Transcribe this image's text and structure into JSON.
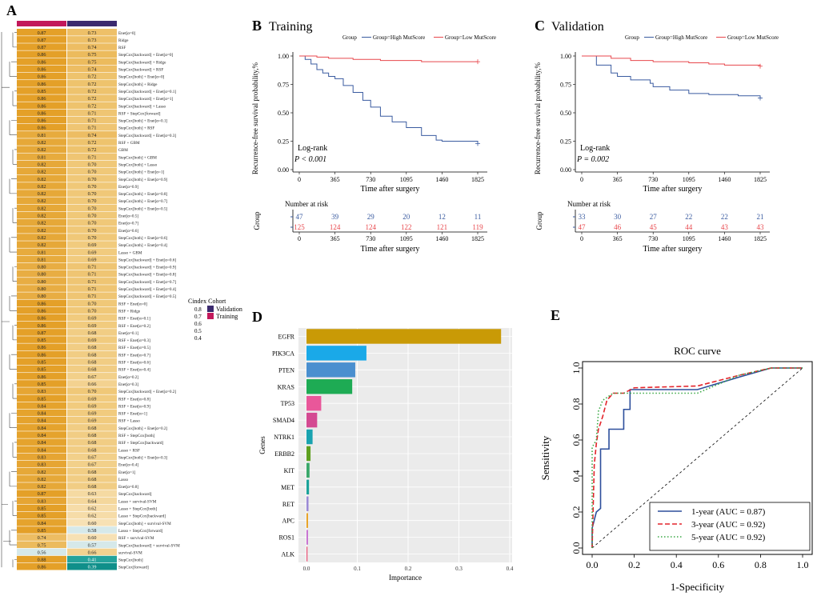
{
  "panels": {
    "A": "A",
    "B": "B",
    "C": "C",
    "D": "D",
    "E": "E"
  },
  "heatmap": {
    "legend_title": "Cindex Cohort",
    "legend_ticks": [
      "0.8",
      "0.7",
      "0.6",
      "0.5",
      "0.4"
    ],
    "legend_cohorts": [
      "Validation",
      "Training"
    ],
    "cohort_colors": {
      "Training": "#c2185b",
      "Validation": "#3b2a6e"
    },
    "rows": [
      {
        "model": "Enet[α=0]",
        "train": "0.87",
        "val": "0.73"
      },
      {
        "model": "Ridge",
        "train": "0.87",
        "val": "0.73"
      },
      {
        "model": "RSF",
        "train": "0.87",
        "val": "0.74"
      },
      {
        "model": "StepCox[backward] + Enet[α=0]",
        "train": "0.86",
        "val": "0.75"
      },
      {
        "model": "StepCox[backward] + Ridge",
        "train": "0.86",
        "val": "0.75"
      },
      {
        "model": "StepCox[backward] + RSF",
        "train": "0.86",
        "val": "0.74"
      },
      {
        "model": "StepCox[both] + Enet[α=0]",
        "train": "0.86",
        "val": "0.72"
      },
      {
        "model": "StepCox[both] + Ridge",
        "train": "0.86",
        "val": "0.72"
      },
      {
        "model": "StepCox[backward] + Enet[α=0.1]",
        "train": "0.85",
        "val": "0.72"
      },
      {
        "model": "StepCox[backward] + Enet[α=1]",
        "train": "0.86",
        "val": "0.72"
      },
      {
        "model": "StepCox[backward] + Lasso",
        "train": "0.86",
        "val": "0.72"
      },
      {
        "model": "RSF + StepCox[forward]",
        "train": "0.86",
        "val": "0.71"
      },
      {
        "model": "StepCox[both] + Enet[α=0.1]",
        "train": "0.86",
        "val": "0.71"
      },
      {
        "model": "StepCox[both] + RSF",
        "train": "0.86",
        "val": "0.71"
      },
      {
        "model": "StepCox[backward] + Enet[α=0.3]",
        "train": "0.81",
        "val": "0.74"
      },
      {
        "model": "RSF + GBM",
        "train": "0.82",
        "val": "0.72"
      },
      {
        "model": "GBM",
        "train": "0.82",
        "val": "0.72"
      },
      {
        "model": "StepCox[both] + GBM",
        "train": "0.81",
        "val": "0.71"
      },
      {
        "model": "StepCox[both] + Lasso",
        "train": "0.82",
        "val": "0.70"
      },
      {
        "model": "StepCox[both] + Enet[α=1]",
        "train": "0.82",
        "val": "0.70"
      },
      {
        "model": "StepCox[both] + Enet[α=0.9]",
        "train": "0.82",
        "val": "0.70"
      },
      {
        "model": "Enet[α=0.9]",
        "train": "0.82",
        "val": "0.70"
      },
      {
        "model": "StepCox[both] + Enet[α=0.8]",
        "train": "0.82",
        "val": "0.70"
      },
      {
        "model": "StepCox[both] + Enet[α=0.7]",
        "train": "0.82",
        "val": "0.70"
      },
      {
        "model": "StepCox[both] + Enet[α=0.5]",
        "train": "0.82",
        "val": "0.70"
      },
      {
        "model": "Enet[α=0.5]",
        "train": "0.82",
        "val": "0.70"
      },
      {
        "model": "Enet[α=0.7]",
        "train": "0.82",
        "val": "0.70"
      },
      {
        "model": "Enet[α=0.6]",
        "train": "0.82",
        "val": "0.70"
      },
      {
        "model": "StepCox[both] + Enet[α=0.6]",
        "train": "0.82",
        "val": "0.70"
      },
      {
        "model": "StepCox[both] + Enet[α=0.4]",
        "train": "0.82",
        "val": "0.69"
      },
      {
        "model": "Lasso + GBM",
        "train": "0.81",
        "val": "0.69"
      },
      {
        "model": "StepCox[backward] + Enet[α=0.6]",
        "train": "0.81",
        "val": "0.69"
      },
      {
        "model": "StepCox[backward] + Enet[α=0.9]",
        "train": "0.80",
        "val": "0.71"
      },
      {
        "model": "StepCox[backward] + Enet[α=0.8]",
        "train": "0.80",
        "val": "0.71"
      },
      {
        "model": "StepCox[backward] + Enet[α=0.7]",
        "train": "0.80",
        "val": "0.71"
      },
      {
        "model": "StepCox[backward] + Enet[α=0.4]",
        "train": "0.80",
        "val": "0.71"
      },
      {
        "model": "StepCox[backward] + Enet[α=0.5]",
        "train": "0.80",
        "val": "0.71"
      },
      {
        "model": "RSF + Enet[α=0]",
        "train": "0.86",
        "val": "0.70"
      },
      {
        "model": "RSF + Ridge",
        "train": "0.86",
        "val": "0.70"
      },
      {
        "model": "RSF + Enet[α=0.1]",
        "train": "0.86",
        "val": "0.69"
      },
      {
        "model": "RSF + Enet[α=0.2]",
        "train": "0.86",
        "val": "0.69"
      },
      {
        "model": "Enet[α=0.1]",
        "train": "0.87",
        "val": "0.68"
      },
      {
        "model": "RSF + Enet[α=0.3]",
        "train": "0.85",
        "val": "0.69"
      },
      {
        "model": "RSF + Enet[α=0.5]",
        "train": "0.86",
        "val": "0.68"
      },
      {
        "model": "RSF + Enet[α=0.7]",
        "train": "0.86",
        "val": "0.68"
      },
      {
        "model": "RSF + Enet[α=0.6]",
        "train": "0.85",
        "val": "0.68"
      },
      {
        "model": "RSF + Enet[α=0.4]",
        "train": "0.85",
        "val": "0.68"
      },
      {
        "model": "Enet[α=0.2]",
        "train": "0.86",
        "val": "0.67"
      },
      {
        "model": "Enet[α=0.3]",
        "train": "0.85",
        "val": "0.66"
      },
      {
        "model": "StepCox[backward] + Enet[α=0.2]",
        "train": "0.83",
        "val": "0.70"
      },
      {
        "model": "RSF + Enet[α=0.8]",
        "train": "0.85",
        "val": "0.69"
      },
      {
        "model": "RSF + Enet[α=0.9]",
        "train": "0.84",
        "val": "0.69"
      },
      {
        "model": "RSF + Enet[α=1]",
        "train": "0.84",
        "val": "0.69"
      },
      {
        "model": "RSF + Lasso",
        "train": "0.84",
        "val": "0.69"
      },
      {
        "model": "StepCox[both] + Enet[α=0.2]",
        "train": "0.84",
        "val": "0.68"
      },
      {
        "model": "RSF + StepCox[both]",
        "train": "0.84",
        "val": "0.68"
      },
      {
        "model": "RSF + StepCox[backward]",
        "train": "0.84",
        "val": "0.68"
      },
      {
        "model": "Lasso + RSF",
        "train": "0.84",
        "val": "0.68"
      },
      {
        "model": "StepCox[both] + Enet[α=0.3]",
        "train": "0.83",
        "val": "0.67"
      },
      {
        "model": "Enet[α=0.4]",
        "train": "0.83",
        "val": "0.67"
      },
      {
        "model": "Enet[α=1]",
        "train": "0.82",
        "val": "0.68"
      },
      {
        "model": "Lasso",
        "train": "0.82",
        "val": "0.68"
      },
      {
        "model": "Enet[α=0.8]",
        "train": "0.82",
        "val": "0.68"
      },
      {
        "model": "StepCox[backward]",
        "train": "0.87",
        "val": "0.63"
      },
      {
        "model": "Lasso + survival-SVM",
        "train": "0.83",
        "val": "0.64"
      },
      {
        "model": "Lasso + StepCox[both]",
        "train": "0.85",
        "val": "0.62"
      },
      {
        "model": "Lasso + StepCox[backward]",
        "train": "0.85",
        "val": "0.62"
      },
      {
        "model": "StepCox[both] + survival-SVM",
        "train": "0.84",
        "val": "0.60"
      },
      {
        "model": "Lasso + StepCox[forward]",
        "train": "0.85",
        "val": "0.58"
      },
      {
        "model": "RSF + survival-SVM",
        "train": "0.74",
        "val": "0.60"
      },
      {
        "model": "StepCox[backward] + survival-SVM",
        "train": "0.75",
        "val": "0.57"
      },
      {
        "model": "survival-SVM",
        "train": "0.56",
        "val": "0.66"
      },
      {
        "model": "StepCox[both]",
        "train": "0.88",
        "val": "0.41"
      },
      {
        "model": "StepCox[forward]",
        "train": "0.86",
        "val": "0.39"
      }
    ]
  },
  "km_training": {
    "title": "Training",
    "legend_title": "Group",
    "legend_high": "Group=High MutScore",
    "legend_low": "Group=Low MutScore",
    "ylabel": "Recurrence-free survival probability,%",
    "xlabel": "Time after surgery",
    "logrank": "Log-rank",
    "p_text": "P < 0.001",
    "risk_title": "Number at risk",
    "risk_ylabel": "Group",
    "risk_xlabel": "Time after surgery",
    "high_risk": [
      "47",
      "39",
      "29",
      "20",
      "12",
      "11"
    ],
    "low_risk": [
      "125",
      "124",
      "124",
      "122",
      "121",
      "119"
    ]
  },
  "km_validation": {
    "title": "Validation",
    "legend_title": "Group",
    "legend_high": "Group=High MutScore",
    "legend_low": "Group=Low MutScore",
    "ylabel": "Recurrence-free survival probability,%",
    "xlabel": "Time after surgery",
    "logrank": "Log-rank",
    "p_text": "P = 0.002",
    "risk_title": "Number at risk",
    "risk_ylabel": "Group",
    "risk_xlabel": "Time after surgery",
    "high_risk": [
      "33",
      "30",
      "27",
      "22",
      "22",
      "21"
    ],
    "low_risk": [
      "47",
      "46",
      "45",
      "44",
      "43",
      "43"
    ]
  },
  "km_ticks": [
    "0",
    "365",
    "730",
    "1095",
    "1460",
    "1825"
  ],
  "km_yticks": [
    "0.00",
    "0.25",
    "0.50",
    "0.75",
    "1.00"
  ],
  "importance": {
    "ylabel": "Genes",
    "xlabel": "Importance",
    "xticks": [
      "0.0",
      "0.1",
      "0.2",
      "0.3",
      "0.4"
    ]
  },
  "roc": {
    "title": "ROC curve",
    "xlabel": "1-Specificity",
    "ylabel": "Sensitivity",
    "ticks": [
      "0.0",
      "0.2",
      "0.4",
      "0.6",
      "0.8",
      "1.0"
    ],
    "legend": [
      "1-year (AUC = 0.87)",
      "3-year (AUC = 0.92)",
      "5-year (AUC = 0.92)"
    ]
  },
  "colors": {
    "high": "#3a5ba0",
    "low": "#e8474c",
    "roc1": "#2d4f9c",
    "roc3": "#e3242b",
    "roc5": "#3aa845"
  },
  "chart_data": [
    {
      "type": "heatmap",
      "columns": [
        "Training",
        "Validation"
      ],
      "note_ref": "heatmap.rows",
      "value_range": [
        0.4,
        0.8
      ]
    },
    {
      "type": "line",
      "panel": "B",
      "x": [
        0,
        60,
        120,
        180,
        240,
        300,
        365,
        450,
        550,
        650,
        730,
        830,
        950,
        1095,
        1250,
        1400,
        1460,
        1600,
        1825
      ],
      "series": [
        {
          "name": "Group=High MutScore",
          "values": [
            1.0,
            0.97,
            0.93,
            0.88,
            0.85,
            0.82,
            0.8,
            0.74,
            0.68,
            0.61,
            0.55,
            0.47,
            0.42,
            0.37,
            0.3,
            0.26,
            0.25,
            0.25,
            0.23
          ]
        },
        {
          "name": "Group=Low MutScore",
          "values": [
            1.0,
            1.0,
            1.0,
            0.99,
            0.99,
            0.98,
            0.98,
            0.98,
            0.97,
            0.97,
            0.97,
            0.96,
            0.96,
            0.96,
            0.95,
            0.95,
            0.95,
            0.95,
            0.95
          ]
        }
      ],
      "xlim": [
        0,
        1825
      ],
      "ylim": [
        0,
        1
      ]
    },
    {
      "type": "line",
      "panel": "C",
      "x": [
        0,
        150,
        300,
        365,
        500,
        700,
        730,
        900,
        1095,
        1300,
        1460,
        1600,
        1825
      ],
      "series": [
        {
          "name": "Group=High MutScore",
          "values": [
            1.0,
            0.92,
            0.85,
            0.82,
            0.79,
            0.76,
            0.73,
            0.7,
            0.67,
            0.66,
            0.66,
            0.65,
            0.63
          ]
        },
        {
          "name": "Group=Low MutScore",
          "values": [
            1.0,
            1.0,
            0.98,
            0.98,
            0.96,
            0.96,
            0.95,
            0.95,
            0.94,
            0.93,
            0.92,
            0.92,
            0.91
          ]
        }
      ],
      "xlim": [
        0,
        1825
      ],
      "ylim": [
        0,
        1
      ]
    },
    {
      "type": "bar",
      "panel": "D",
      "categories": [
        "EGFR",
        "PIK3CA",
        "PTEN",
        "KRAS",
        "TP53",
        "SMAD4",
        "NTRK1",
        "ERBB2",
        "KIT",
        "MET",
        "RET",
        "APC",
        "ROS1",
        "ALK"
      ],
      "values": [
        0.383,
        0.118,
        0.096,
        0.09,
        0.029,
        0.021,
        0.012,
        0.008,
        0.006,
        0.005,
        0.004,
        0.003,
        0.003,
        0.002
      ],
      "bar_colors": [
        "#c99a06",
        "#1aa9e8",
        "#4a8fcf",
        "#1eab54",
        "#e9579a",
        "#d44a92",
        "#19a3b0",
        "#5e9f1f",
        "#39a86a",
        "#1ba39a",
        "#9b8ad5",
        "#e8a01e",
        "#c76fd1",
        "#e8587a"
      ],
      "xlim": [
        0,
        0.4
      ]
    },
    {
      "type": "line",
      "panel": "E",
      "series": [
        {
          "name": "1-year (AUC = 0.87)",
          "points": [
            [
              0,
              0
            ],
            [
              0,
              0.11
            ],
            [
              0.02,
              0.2
            ],
            [
              0.04,
              0.22
            ],
            [
              0.04,
              0.55
            ],
            [
              0.08,
              0.55
            ],
            [
              0.08,
              0.66
            ],
            [
              0.15,
              0.66
            ],
            [
              0.15,
              0.77
            ],
            [
              0.18,
              0.77
            ],
            [
              0.18,
              0.88
            ],
            [
              0.25,
              0.88
            ],
            [
              0.5,
              0.88
            ],
            [
              0.7,
              0.95
            ],
            [
              0.85,
              1.0
            ],
            [
              1,
              1
            ]
          ]
        },
        {
          "name": "3-year (AUC = 0.92)",
          "points": [
            [
              0,
              0
            ],
            [
              0.01,
              0.46
            ],
            [
              0.02,
              0.58
            ],
            [
              0.03,
              0.66
            ],
            [
              0.05,
              0.73
            ],
            [
              0.07,
              0.82
            ],
            [
              0.1,
              0.86
            ],
            [
              0.15,
              0.86
            ],
            [
              0.2,
              0.89
            ],
            [
              0.5,
              0.9
            ],
            [
              0.7,
              0.96
            ],
            [
              0.85,
              1.0
            ],
            [
              1,
              1
            ]
          ]
        },
        {
          "name": "5-year (AUC = 0.92)",
          "points": [
            [
              0,
              0
            ],
            [
              0,
              0.56
            ],
            [
              0.02,
              0.6
            ],
            [
              0.03,
              0.76
            ],
            [
              0.05,
              0.82
            ],
            [
              0.1,
              0.86
            ],
            [
              0.2,
              0.86
            ],
            [
              0.5,
              0.86
            ],
            [
              0.7,
              0.96
            ],
            [
              0.85,
              1.0
            ],
            [
              1,
              1
            ]
          ]
        }
      ],
      "xlim": [
        0,
        1
      ],
      "ylim": [
        0,
        1
      ]
    }
  ]
}
